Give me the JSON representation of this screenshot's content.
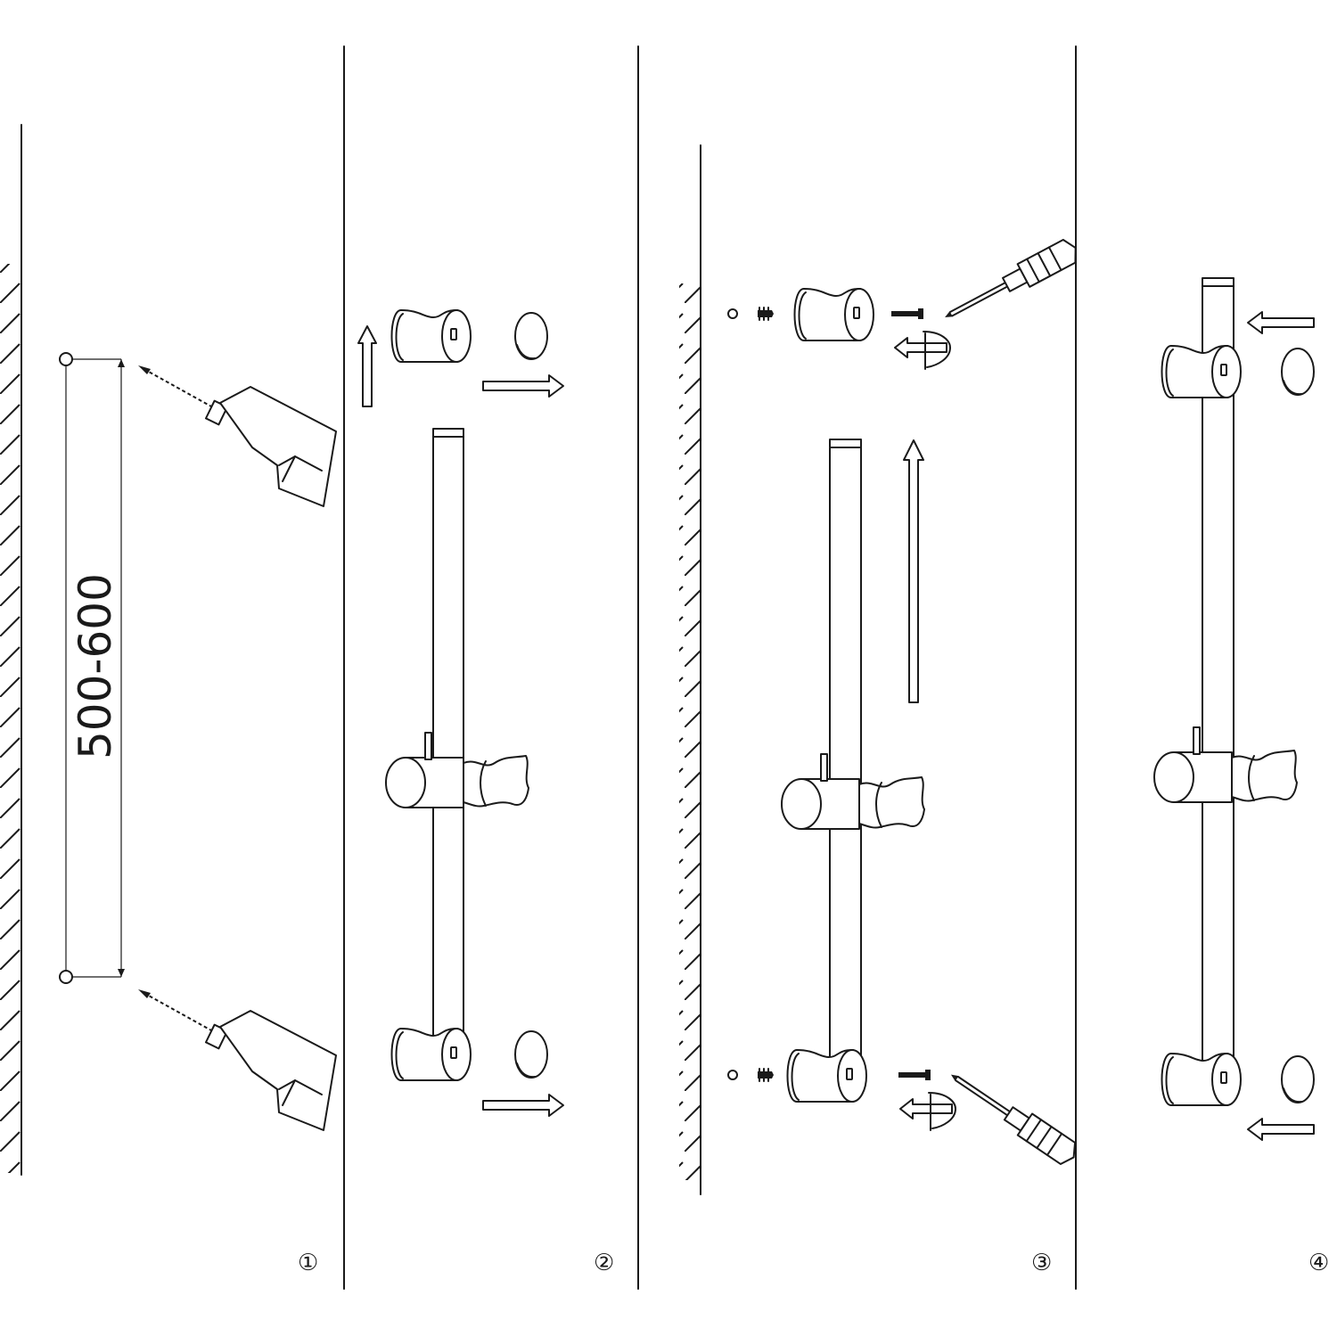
{
  "diagram": {
    "panels": [
      {
        "step": "①"
      },
      {
        "step": "②"
      },
      {
        "step": "③"
      },
      {
        "step": "④"
      }
    ],
    "dimension_label": "500-600",
    "colors": {
      "line": "#1a1a1a",
      "background": "#ffffff"
    }
  }
}
